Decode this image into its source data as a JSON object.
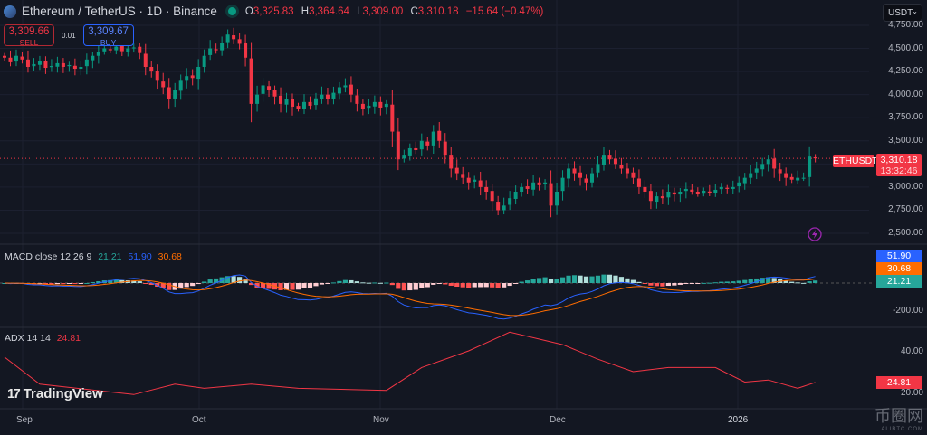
{
  "header": {
    "title": "Ethereum / TetherUS · 1D · Binance",
    "open_label": "O",
    "open": "3,325.83",
    "high_label": "H",
    "high": "3,364.64",
    "low_label": "L",
    "low": "3,309.00",
    "close_label": "C",
    "close": "3,310.18",
    "change": "−15.64 (−0.47%)"
  },
  "trade": {
    "sell_price": "3,309.66",
    "sell_label": "SELL",
    "spread": "0.01",
    "buy_price": "3,309.67",
    "buy_label": "BUY"
  },
  "currency_select": "USDT",
  "price_axis": [
    "4,750.00",
    "4,500.00",
    "4,250.00",
    "4,000.00",
    "3,750.00",
    "3,500.00",
    "3,000.00",
    "2,750.00",
    "2,500.00"
  ],
  "last_price": {
    "symbol": "ETHUSDT",
    "price": "3,310.18",
    "countdown": "13:32:46"
  },
  "macd": {
    "label": "MACD close 12 26 9",
    "hist": "21.21",
    "macd": "51.90",
    "signal": "30.68",
    "axis": "-200.00"
  },
  "adx": {
    "label": "ADX 14 14",
    "value": "24.81",
    "axis_40": "40.00",
    "axis_20": "20.00"
  },
  "time_axis": [
    "Sep",
    "Oct",
    "Nov",
    "Dec",
    "2026"
  ],
  "watermark": "TradingView",
  "corner_logo": {
    "text": "币圈网",
    "sub": "ALIBTC.COM"
  },
  "colors": {
    "up": "#089981",
    "down": "#f23645",
    "macd": "#2962ff",
    "signal": "#ff6d00",
    "adx": "#f23645"
  },
  "chart_data": {
    "type": "candlestick",
    "interval": "1D",
    "first_day": "Aug 29",
    "closes": [
      4400,
      4350,
      4420,
      4380,
      4300,
      4330,
      4360,
      4290,
      4310,
      4340,
      4300,
      4320,
      4280,
      4300,
      4380,
      4420,
      4460,
      4500,
      4480,
      4520,
      4470,
      4500,
      4510,
      4450,
      4300,
      4250,
      4150,
      4080,
      3950,
      4050,
      4150,
      4200,
      4180,
      4300,
      4420,
      4500,
      4480,
      4560,
      4650,
      4600,
      4550,
      4400,
      3900,
      4000,
      4100,
      4050,
      3980,
      3900,
      3950,
      3870,
      3850,
      3920,
      3880,
      3960,
      4000,
      3950,
      4020,
      4080,
      4100,
      4000,
      3900,
      3850,
      3880,
      3920,
      3860,
      3900,
      3600,
      3300,
      3350,
      3420,
      3400,
      3500,
      3450,
      3600,
      3500,
      3350,
      3200,
      3150,
      3100,
      3050,
      3080,
      3000,
      2950,
      2850,
      2750,
      2800,
      2880,
      2950,
      3000,
      2980,
      3050,
      3020,
      3050,
      2800,
      2950,
      3100,
      3200,
      3150,
      3100,
      3050,
      3150,
      3250,
      3350,
      3300,
      3250,
      3200,
      3150,
      3100,
      3000,
      2950,
      2850,
      2900,
      2880,
      2950,
      2920,
      2950,
      2980,
      2950,
      2930,
      2960,
      2940,
      2970,
      3000,
      2980,
      3000,
      3050,
      3100,
      3150,
      3200,
      3250,
      3300,
      3200,
      3150,
      3100,
      3080,
      3100,
      3100,
      3330,
      3310.18
    ],
    "price_range": [
      2500,
      4750
    ],
    "adx_points": [
      [
        0,
        37
      ],
      [
        6,
        24
      ],
      [
        22,
        19
      ],
      [
        29,
        24
      ],
      [
        34,
        22
      ],
      [
        42,
        24
      ],
      [
        50,
        22
      ],
      [
        65,
        21
      ],
      [
        71,
        32
      ],
      [
        79,
        40
      ],
      [
        86,
        49
      ],
      [
        95,
        43
      ],
      [
        101,
        36
      ],
      [
        107,
        30
      ],
      [
        113,
        32
      ],
      [
        121,
        32
      ],
      [
        126,
        25
      ],
      [
        130,
        26
      ],
      [
        135,
        22
      ],
      [
        138,
        24.81
      ]
    ],
    "adx_range": [
      15,
      55
    ],
    "macd_params": [
      12,
      26,
      9
    ]
  }
}
